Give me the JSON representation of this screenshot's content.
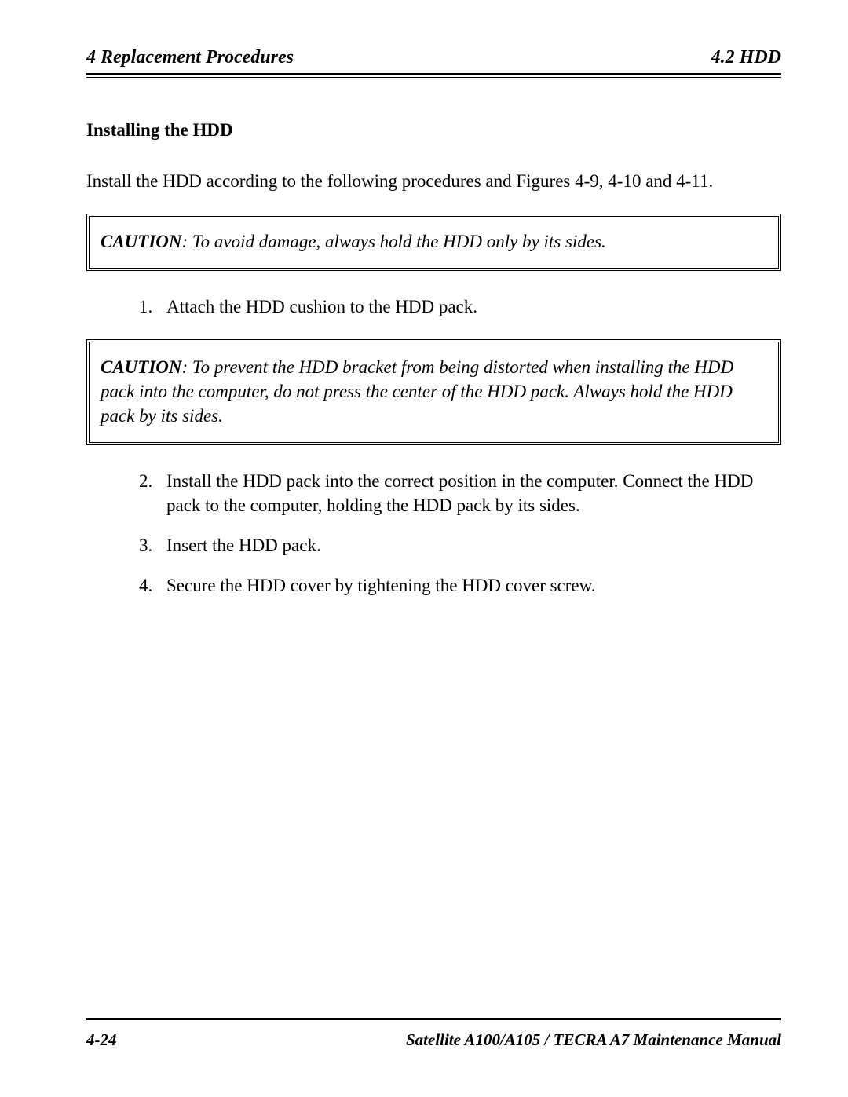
{
  "header": {
    "left": "4 Replacement Procedures",
    "right": "4.2 HDD"
  },
  "section_title": "Installing the HDD",
  "intro_paragraph": "Install the HDD according to the following procedures and Figures 4-9, 4-10 and 4-11.",
  "caution1": {
    "label": "CAUTION",
    "text": ":  To avoid damage, always hold the HDD only by its sides."
  },
  "steps_a": [
    "Attach the HDD cushion to the HDD pack."
  ],
  "caution2": {
    "label": "CAUTION",
    "text": ":  To prevent the HDD bracket from being distorted when installing the HDD pack into the computer, do not press the center of the HDD pack. Always hold the HDD pack by its sides."
  },
  "steps_b": [
    "Install the HDD pack into the correct position in the computer. Connect the HDD pack to the computer, holding the HDD pack by its sides.",
    "Insert the HDD pack.",
    "Secure the HDD cover by tightening the HDD cover screw."
  ],
  "footer": {
    "left": "4-24",
    "right": "Satellite A100/A105 / TECRA A7 Maintenance Manual"
  }
}
